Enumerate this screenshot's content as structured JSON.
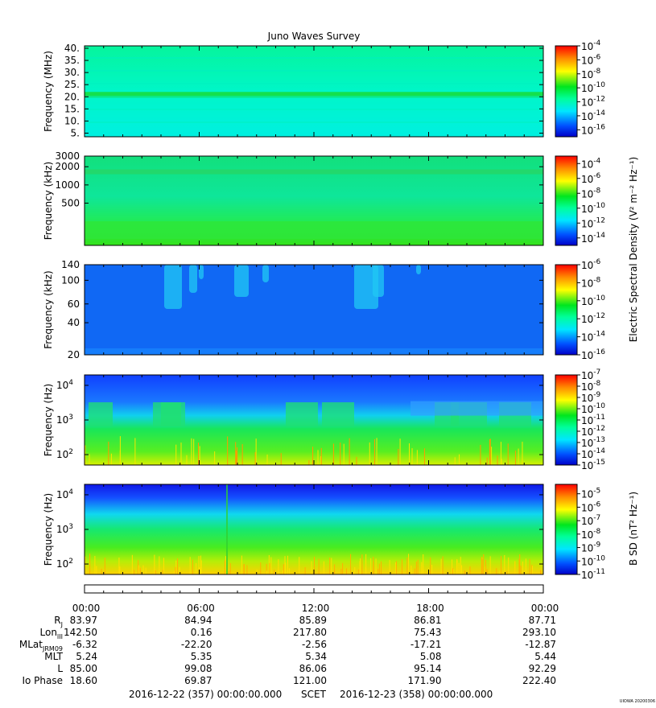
{
  "chart_data": {
    "title": "Juno Waves Survey",
    "type": "heatmap",
    "time_ticks": [
      "00:00",
      "06:00",
      "12:00",
      "18:00",
      "00:00"
    ],
    "panels": [
      {
        "ylabel": "Frequency (MHz)",
        "yscale": "linear",
        "ylim": [
          3.5,
          41
        ],
        "yticks": [
          {
            "v": 5,
            "t": "5."
          },
          {
            "v": 10,
            "t": "10."
          },
          {
            "v": 15,
            "t": "15."
          },
          {
            "v": 20,
            "t": "20."
          },
          {
            "v": 25,
            "t": "25."
          },
          {
            "v": 30,
            "t": "30."
          },
          {
            "v": 35,
            "t": "35."
          },
          {
            "v": 40,
            "t": "40."
          }
        ],
        "cbar": {
          "min": -17,
          "max": -4,
          "ticks": [
            -4,
            -6,
            -8,
            -10,
            -12,
            -14,
            -16
          ]
        }
      },
      {
        "ylabel": "Frequency (kHz)",
        "yscale": "log",
        "ylim": [
          100,
          3000
        ],
        "yticks": [
          {
            "v": 500,
            "t": "500"
          },
          {
            "v": 1000,
            "t": "1000"
          },
          {
            "v": 2000,
            "t": "2000"
          },
          {
            "v": 3000,
            "t": "3000"
          }
        ],
        "cbar": {
          "min": -15,
          "max": -3,
          "ticks": [
            -4,
            -6,
            -8,
            -10,
            -12,
            -14
          ]
        }
      },
      {
        "ylabel": "Frequency (kHz)",
        "yscale": "log",
        "ylim": [
          20,
          140
        ],
        "yticks": [
          {
            "v": 20,
            "t": "20"
          },
          {
            "v": 40,
            "t": "40"
          },
          {
            "v": 60,
            "t": "60"
          },
          {
            "v": 100,
            "t": "100"
          },
          {
            "v": 140,
            "t": "140"
          }
        ],
        "cbar": {
          "min": -16,
          "max": -6,
          "ticks": [
            -6,
            -8,
            -10,
            -12,
            -14,
            -16
          ]
        }
      },
      {
        "ylabel": "Frequency (Hz)",
        "yscale": "log",
        "ylim": [
          50,
          20000
        ],
        "yticks": [
          {
            "v": 100,
            "b": "10",
            "e": "2"
          },
          {
            "v": 1000,
            "b": "10",
            "e": "3"
          },
          {
            "v": 10000,
            "b": "10",
            "e": "4"
          }
        ],
        "cbar": {
          "min": -15,
          "max": -7,
          "ticks": [
            -7,
            -8,
            -9,
            -10,
            -11,
            -12,
            -13,
            -14,
            -15
          ]
        }
      },
      {
        "ylabel": "Frequency (Hz)",
        "yscale": "log",
        "ylim": [
          50,
          20000
        ],
        "yticks": [
          {
            "v": 100,
            "b": "10",
            "e": "2"
          },
          {
            "v": 1000,
            "b": "10",
            "e": "3"
          },
          {
            "v": 10000,
            "b": "10",
            "e": "4"
          }
        ],
        "cbar": {
          "min": -11,
          "max": -4.3,
          "ticks": [
            -5,
            -6,
            -7,
            -8,
            -9,
            -10,
            -11
          ]
        }
      }
    ],
    "cbar_label_electric": "Electric Spectral Density (V² m⁻² Hz⁻¹)",
    "cbar_label_magnetic": "B SD (nT² Hz⁻¹)",
    "ephemeris": [
      {
        "label": "R",
        "sub": "J",
        "values": [
          "83.97",
          "84.94",
          "85.89",
          "86.81",
          "87.71"
        ]
      },
      {
        "label": "Lon",
        "sub": "III",
        "values": [
          "142.50",
          "0.16",
          "217.80",
          "75.43",
          "293.10"
        ]
      },
      {
        "label": "MLat",
        "sub": "JRM09",
        "values": [
          "-6.32",
          "-22.20",
          "-2.56",
          "-17.21",
          "-12.87"
        ]
      },
      {
        "label": "MLT",
        "sub": "",
        "values": [
          "5.24",
          "5.35",
          "5.34",
          "5.08",
          "5.44"
        ]
      },
      {
        "label": "L",
        "sub": "",
        "values": [
          "85.00",
          "99.08",
          "86.06",
          "95.14",
          "92.29"
        ]
      },
      {
        "label": "Io Phase",
        "sub": "",
        "values": [
          "18.60",
          "69.87",
          "121.00",
          "171.90",
          "222.40"
        ]
      }
    ],
    "time_range_start": "2016-12-22 (357) 00:00:00.000",
    "time_range_label": "SCET",
    "time_range_end": "2016-12-23 (358) 00:00:00.000",
    "footer": "UIOWA 20200306"
  }
}
